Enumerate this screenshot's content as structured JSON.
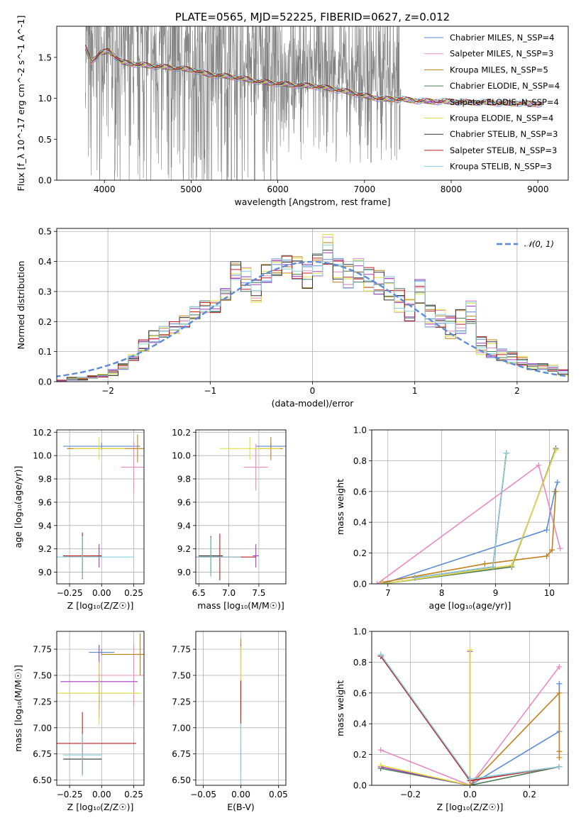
{
  "chart_data": [
    {
      "id": "spectrum",
      "type": "line",
      "title": "PLATE=0565, MJD=52225, FIBERID=0627, z=0.012",
      "xlabel": "wavelength [Angstrom, rest frame]",
      "ylabel": "Flux [f_λ 10^-17 erg cm^-2 s^-1 A^-1]",
      "xlim": [
        3450,
        9350
      ],
      "ylim": [
        0,
        1.88
      ],
      "xticks": [
        4000,
        5000,
        6000,
        7000,
        8000,
        9000
      ],
      "yticks": [
        0.0,
        0.5,
        1.0,
        1.5
      ],
      "grid": false,
      "legend_position": "top-right",
      "data_line": {
        "name": "data",
        "color": "#808080",
        "x_range": [
          3780,
          7420
        ],
        "typical_value": 1.2
      },
      "models": [
        {
          "name": "Chabrier MILES, N_SSP=4",
          "color": "#5b8bd6"
        },
        {
          "name": "Salpeter MILES, N_SSP=3",
          "color": "#e88ac4"
        },
        {
          "name": "Kroupa MILES, N_SSP=5",
          "color": "#c07f1a"
        },
        {
          "name": "Chabrier ELODIE, N_SSP=4",
          "color": "#4a7a55"
        },
        {
          "name": "Salpeter ELODIE, N_SSP=4",
          "color": "#a43bc2"
        },
        {
          "name": "Kroupa ELODIE, N_SSP=4",
          "color": "#e0e040"
        },
        {
          "name": "Chabrier STELIB, N_SSP=3",
          "color": "#333333"
        },
        {
          "name": "Salpeter STELIB, N_SSP=3",
          "color": "#c11f1f"
        },
        {
          "name": "Kroupa STELIB, N_SSP=3",
          "color": "#86d0e0"
        }
      ],
      "model_continuum": {
        "x": [
          3780,
          3850,
          3950,
          4050,
          4200,
          4400,
          4600,
          4800,
          5000,
          5200,
          5400,
          5600,
          5800,
          6000,
          6200,
          6400,
          6600,
          6800,
          7000,
          7200,
          7400,
          7600,
          7800,
          8000,
          8200,
          8400,
          8600,
          8800,
          9000,
          9060
        ],
        "y": [
          1.62,
          1.45,
          1.55,
          1.58,
          1.44,
          1.41,
          1.39,
          1.37,
          1.35,
          1.29,
          1.27,
          1.24,
          1.2,
          1.18,
          1.16,
          1.15,
          1.12,
          1.08,
          1.03,
          0.99,
          0.99,
          0.97,
          0.96,
          0.96,
          0.95,
          0.95,
          0.94,
          0.94,
          0.93,
          0.94
        ]
      }
    },
    {
      "id": "residuals",
      "type": "line",
      "title": "",
      "xlabel": "(data-model)/error",
      "ylabel": "Normed distribution",
      "xlim": [
        -2.5,
        2.5
      ],
      "ylim": [
        0,
        0.51
      ],
      "xticks": [
        -2,
        -1,
        0,
        1,
        2
      ],
      "yticks": [
        0.0,
        0.1,
        0.2,
        0.3,
        0.4,
        0.5
      ],
      "grid": true,
      "legend_position": "top-right",
      "reference": {
        "name": "𝒩(0, 1)",
        "color": "#5b8bd6",
        "style": "dashed"
      },
      "bin_edges": [
        -2.5,
        -2.4,
        -2.3,
        -2.2,
        -2.1,
        -2.0,
        -1.9,
        -1.8,
        -1.7,
        -1.6,
        -1.5,
        -1.4,
        -1.3,
        -1.2,
        -1.1,
        -1.0,
        -0.9,
        -0.8,
        -0.7,
        -0.6,
        -0.5,
        -0.4,
        -0.3,
        -0.2,
        -0.1,
        0.0,
        0.1,
        0.2,
        0.3,
        0.4,
        0.5,
        0.6,
        0.7,
        0.8,
        0.9,
        1.0,
        1.1,
        1.2,
        1.3,
        1.4,
        1.5,
        1.6,
        1.7,
        1.8,
        1.9,
        2.0,
        2.1,
        2.2,
        2.3,
        2.4
      ],
      "hist_values": [
        0.0,
        0.01,
        0.01,
        0.015,
        0.02,
        0.03,
        0.05,
        0.08,
        0.12,
        0.15,
        0.165,
        0.18,
        0.2,
        0.23,
        0.25,
        0.25,
        0.29,
        0.37,
        0.34,
        0.3,
        0.36,
        0.38,
        0.39,
        0.38,
        0.35,
        0.39,
        0.44,
        0.37,
        0.35,
        0.37,
        0.34,
        0.33,
        0.31,
        0.27,
        0.24,
        0.3,
        0.22,
        0.21,
        0.18,
        0.2,
        0.23,
        0.12,
        0.11,
        0.09,
        0.08,
        0.07,
        0.05,
        0.05,
        0.045,
        0.03
      ],
      "hist_spread": [
        0.005,
        0.005,
        0.005,
        0.005,
        0.005,
        0.01,
        0.01,
        0.01,
        0.02,
        0.02,
        0.02,
        0.02,
        0.02,
        0.02,
        0.02,
        0.02,
        0.02,
        0.03,
        0.04,
        0.04,
        0.03,
        0.03,
        0.03,
        0.04,
        0.04,
        0.04,
        0.05,
        0.04,
        0.04,
        0.04,
        0.04,
        0.04,
        0.04,
        0.04,
        0.04,
        0.04,
        0.04,
        0.03,
        0.04,
        0.04,
        0.04,
        0.03,
        0.03,
        0.02,
        0.02,
        0.015,
        0.01,
        0.01,
        0.01,
        0.01
      ]
    },
    {
      "id": "age_vs_Z",
      "type": "scatter",
      "xlabel": "Z [log₁₀(Z/Z☉)]",
      "ylabel": "age  [log₁₀(age/yr)]",
      "xlim": [
        -0.35,
        0.33
      ],
      "ylim": [
        8.9,
        10.22
      ],
      "xticks": [
        -0.25,
        0.0,
        0.25
      ],
      "yticks": [
        9.0,
        9.2,
        9.4,
        9.6,
        9.8,
        10.0,
        10.2
      ],
      "grid": true,
      "points": [
        {
          "model": 0,
          "x": 0.0,
          "y": 10.08,
          "xerr": 0.3,
          "yerr": 0.03
        },
        {
          "model": 1,
          "x": 0.25,
          "y": 9.9,
          "xerr": 0.1,
          "yerr": 0.22
        },
        {
          "model": 2,
          "x": 0.28,
          "y": 10.06,
          "xerr": 0.55,
          "yerr": 0.12
        },
        {
          "model": 3,
          "x": -0.15,
          "y": 9.14,
          "xerr": 0.15,
          "yerr": 0.15
        },
        {
          "model": 4,
          "x": -0.02,
          "y": 9.14,
          "xerr": 0.02,
          "yerr": 0.1
        },
        {
          "model": 5,
          "x": -0.02,
          "y": 10.06,
          "xerr": 0.2,
          "yerr": 0.1
        },
        {
          "model": 6,
          "x": -0.15,
          "y": 9.14,
          "xerr": 0.15,
          "yerr": 0.18
        },
        {
          "model": 7,
          "x": -0.15,
          "y": 9.14,
          "xerr": 0.14,
          "yerr": 0.2
        },
        {
          "model": 8,
          "x": -0.15,
          "y": 9.13,
          "xerr": 0.4,
          "yerr": 0.18
        }
      ]
    },
    {
      "id": "age_vs_mass",
      "type": "scatter",
      "xlabel": "mass [log₁₀(M/M☉)]",
      "ylabel": "",
      "xlim": [
        6.45,
        7.95
      ],
      "ylim": [
        8.9,
        10.22
      ],
      "xticks": [
        6.5,
        7.0,
        7.5
      ],
      "yticks": [
        9.0,
        9.2,
        9.4,
        9.6,
        9.8,
        10.0,
        10.2
      ],
      "grid": true,
      "points": [
        {
          "model": 0,
          "x": 7.7,
          "y": 10.08,
          "xerr": 0.25,
          "yerr": 0.03
        },
        {
          "model": 1,
          "x": 7.45,
          "y": 9.9,
          "xerr": 0.2,
          "yerr": 0.2
        },
        {
          "model": 2,
          "x": 7.7,
          "y": 10.06,
          "xerr": 0.2,
          "yerr": 0.1
        },
        {
          "model": 3,
          "x": 6.7,
          "y": 9.14,
          "xerr": 0.2,
          "yerr": 0.15
        },
        {
          "model": 4,
          "x": 7.45,
          "y": 9.14,
          "xerr": 0.05,
          "yerr": 0.1
        },
        {
          "model": 5,
          "x": 7.35,
          "y": 10.06,
          "xerr": 0.5,
          "yerr": 0.1
        },
        {
          "model": 6,
          "x": 6.7,
          "y": 9.14,
          "xerr": 0.2,
          "yerr": 0.17
        },
        {
          "model": 7,
          "x": 6.85,
          "y": 9.13,
          "xerr": 0.6,
          "yerr": 0.2
        },
        {
          "model": 8,
          "x": 6.7,
          "y": 9.13,
          "xerr": 0.5,
          "yerr": 0.17
        }
      ]
    },
    {
      "id": "massweight_vs_age",
      "type": "line",
      "xlabel": "age  [log₁₀(age/yr)]",
      "ylabel": "mass weight",
      "xlim": [
        6.7,
        10.35
      ],
      "ylim": [
        0,
        1.0
      ],
      "xticks": [
        7,
        8,
        9,
        10
      ],
      "yticks": [
        0.0,
        0.2,
        0.4,
        0.6,
        0.8,
        1.0
      ],
      "grid": true,
      "series": [
        {
          "model": 0,
          "x": [
            6.9,
            9.95,
            10.1,
            10.15
          ],
          "y": [
            0.0,
            0.35,
            0.6,
            0.66
          ]
        },
        {
          "model": 1,
          "x": [
            6.8,
            9.8,
            10.2
          ],
          "y": [
            0.0,
            0.77,
            0.23
          ]
        },
        {
          "model": 2,
          "x": [
            6.9,
            8.8,
            9.95,
            10.05,
            10.12
          ],
          "y": [
            0.01,
            0.13,
            0.18,
            0.22,
            0.6
          ]
        },
        {
          "model": 3,
          "x": [
            6.9,
            9.3,
            10.12
          ],
          "y": [
            0.0,
            0.11,
            0.88
          ]
        },
        {
          "model": 4,
          "x": [
            6.9,
            9.3,
            10.12
          ],
          "y": [
            0.0,
            0.12,
            0.87
          ]
        },
        {
          "model": 5,
          "x": [
            6.9,
            9.3,
            10.12
          ],
          "y": [
            0.0,
            0.12,
            0.87
          ]
        },
        {
          "model": 6,
          "x": [
            7.5,
            8.95,
            9.2
          ],
          "y": [
            0.04,
            0.11,
            0.85
          ]
        },
        {
          "model": 7,
          "x": [
            7.5,
            8.95,
            9.2
          ],
          "y": [
            0.04,
            0.11,
            0.85
          ]
        },
        {
          "model": 8,
          "x": [
            7.5,
            8.95,
            9.2
          ],
          "y": [
            0.04,
            0.11,
            0.85
          ]
        }
      ]
    },
    {
      "id": "mass_vs_Z",
      "type": "scatter",
      "xlabel": "Z [log₁₀(Z/Z☉)]",
      "ylabel": "mass [log₁₀(M/M☉)]",
      "xlim": [
        -0.35,
        0.33
      ],
      "ylim": [
        6.45,
        7.92
      ],
      "xticks": [
        -0.25,
        0.0,
        0.25
      ],
      "yticks": [
        6.5,
        6.75,
        7.0,
        7.25,
        7.5,
        7.75
      ],
      "grid": true,
      "points": [
        {
          "model": 0,
          "x": 0.0,
          "y": 7.72,
          "xerr": 0.1,
          "yerr": 0.03
        },
        {
          "model": 1,
          "x": 0.25,
          "y": 7.5,
          "xerr": 0.3,
          "yerr": 0.3
        },
        {
          "model": 2,
          "x": 0.3,
          "y": 7.7,
          "xerr": 0.3,
          "yerr": 0.2
        },
        {
          "model": 3,
          "x": -0.02,
          "y": 7.33,
          "xerr": 0.3,
          "yerr": 0.15
        },
        {
          "model": 4,
          "x": -0.02,
          "y": 7.44,
          "xerr": 0.3,
          "yerr": 0.35
        },
        {
          "model": 5,
          "x": -0.02,
          "y": 7.33,
          "xerr": 0.33,
          "yerr": 0.3
        },
        {
          "model": 6,
          "x": -0.15,
          "y": 6.7,
          "xerr": 0.15,
          "yerr": 0.15
        },
        {
          "model": 7,
          "x": -0.15,
          "y": 6.85,
          "xerr": 0.42,
          "yerr": 0.3
        },
        {
          "model": 8,
          "x": -0.15,
          "y": 6.74,
          "xerr": 0.15,
          "yerr": 0.2
        }
      ]
    },
    {
      "id": "mass_vs_ebv",
      "type": "scatter",
      "xlabel": "E(B-V)",
      "ylabel": "",
      "xlim": [
        -0.06,
        0.06
      ],
      "ylim": [
        6.45,
        7.92
      ],
      "xticks": [
        -0.05,
        0.0,
        0.05
      ],
      "yticks": [
        6.5,
        6.75,
        7.0,
        7.25,
        7.5,
        7.75
      ],
      "grid": true,
      "points": [
        {
          "model": 0,
          "x": 0.0,
          "y": 7.72,
          "xerr": 0.0,
          "yerr": 0.1
        },
        {
          "model": 1,
          "x": 0.0,
          "y": 7.5,
          "xerr": 0.0,
          "yerr": 0.3
        },
        {
          "model": 2,
          "x": 0.0,
          "y": 7.7,
          "xerr": 0.0,
          "yerr": 0.15
        },
        {
          "model": 3,
          "x": 0.0,
          "y": 7.33,
          "xerr": 0.0,
          "yerr": 0.2
        },
        {
          "model": 4,
          "x": 0.0,
          "y": 7.44,
          "xerr": 0.0,
          "yerr": 0.35
        },
        {
          "model": 5,
          "x": 0.0,
          "y": 7.33,
          "xerr": 0.0,
          "yerr": 0.45
        },
        {
          "model": 6,
          "x": 0.0,
          "y": 6.7,
          "xerr": 0.0,
          "yerr": 0.12
        },
        {
          "model": 7,
          "x": 0.0,
          "y": 6.85,
          "xerr": 0.0,
          "yerr": 0.6
        },
        {
          "model": 8,
          "x": 0.0,
          "y": 6.74,
          "xerr": 0.0,
          "yerr": 0.3
        }
      ]
    },
    {
      "id": "massweight_vs_Z",
      "type": "line",
      "xlabel": "Z [log₁₀(Z/Z☉)]",
      "ylabel": "mass weight",
      "xlim": [
        -0.33,
        0.33
      ],
      "ylim": [
        0,
        1.0
      ],
      "xticks": [
        -0.2,
        0.0,
        0.2
      ],
      "yticks": [
        0.0,
        0.2,
        0.4,
        0.6,
        0.8,
        1.0
      ],
      "grid": true,
      "series": [
        {
          "model": 0,
          "x": [
            0.0,
            0.3,
            0.3
          ],
          "y": [
            0.0,
            0.35,
            0.66
          ]
        },
        {
          "model": 1,
          "x": [
            -0.3,
            0.0,
            0.3
          ],
          "y": [
            0.23,
            0.0,
            0.77
          ]
        },
        {
          "model": 2,
          "x": [
            0.0,
            0.3,
            0.3,
            0.3
          ],
          "y": [
            0.0,
            0.6,
            0.22,
            0.18
          ]
        },
        {
          "model": 3,
          "x": [
            -0.3,
            0.0,
            0.3
          ],
          "y": [
            0.11,
            0.0,
            0.12
          ]
        },
        {
          "model": 4,
          "x": [
            -0.3,
            0.0,
            0.0
          ],
          "y": [
            0.12,
            0.0,
            0.87
          ]
        },
        {
          "model": 5,
          "x": [
            -0.3,
            0.0,
            0.0
          ],
          "y": [
            0.13,
            0.0,
            0.88
          ]
        },
        {
          "model": 6,
          "x": [
            -0.3,
            0.0,
            0.3
          ],
          "y": [
            0.84,
            0.04,
            0.12
          ]
        },
        {
          "model": 7,
          "x": [
            -0.3,
            0.0,
            0.3
          ],
          "y": [
            0.84,
            0.03,
            0.12
          ]
        },
        {
          "model": 8,
          "x": [
            -0.3,
            0.0,
            0.3
          ],
          "y": [
            0.85,
            0.04,
            0.12
          ]
        }
      ]
    }
  ]
}
